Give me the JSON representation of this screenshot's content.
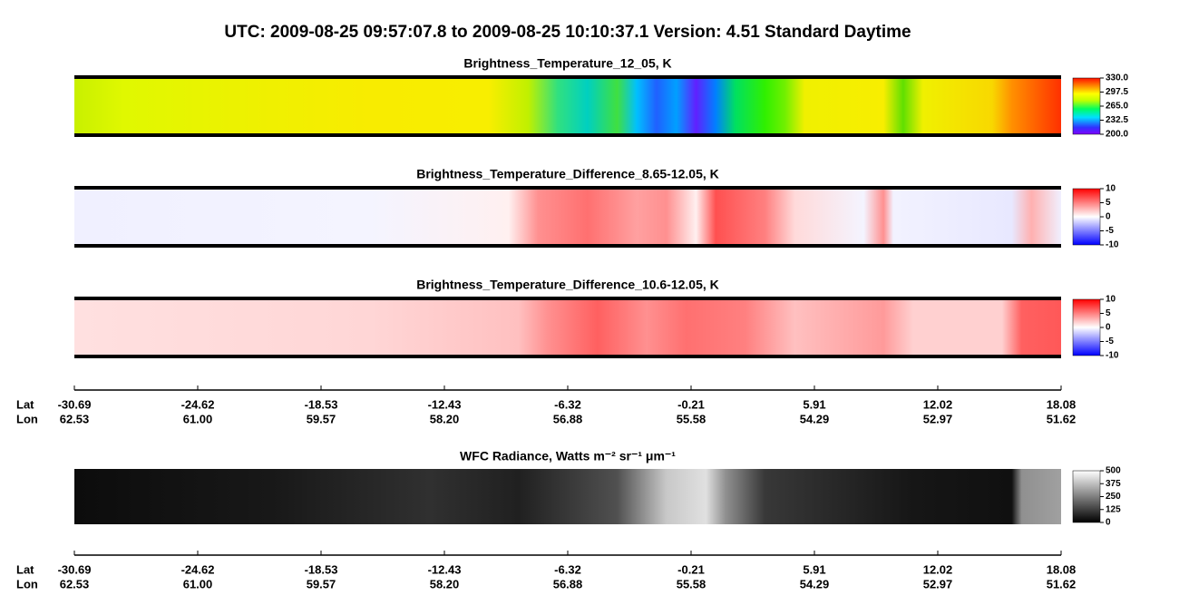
{
  "title": "UTC:  2009-08-25   09:57:07.8  to  2009-08-25   10:10:37.1    Version: 4.51  Standard Daytime",
  "chart_data": [
    {
      "type": "heatmap",
      "title": "Brightness_Temperature_12_05, K",
      "colorscale": "rainbow",
      "zlim": [
        200,
        330
      ],
      "zticks": [
        {
          "value": 330,
          "label": "330.0"
        },
        {
          "value": 297.5,
          "label": "297.5"
        },
        {
          "value": 265,
          "label": "265.0"
        },
        {
          "value": 232.5,
          "label": "232.5"
        },
        {
          "value": 200,
          "label": "200.0"
        }
      ]
    },
    {
      "type": "heatmap",
      "title": "Brightness_Temperature_Difference_8.65-12.05, K",
      "colorscale": "bluewhitered",
      "zlim": [
        -10,
        10
      ],
      "zticks": [
        10,
        5,
        0,
        -5,
        -10
      ]
    },
    {
      "type": "heatmap",
      "title": "Brightness_Temperature_Difference_10.6-12.05, K",
      "colorscale": "bluewhitered",
      "zlim": [
        -10,
        10
      ],
      "zticks": [
        10,
        5,
        0,
        -5,
        -10
      ]
    },
    {
      "type": "heatmap",
      "title": "WFC Radiance, Watts m⁻² sr⁻¹ μm⁻¹",
      "colorscale": "gray",
      "zlim": [
        0,
        500
      ],
      "zticks": [
        500,
        375,
        250,
        125,
        0
      ]
    }
  ],
  "along_track_axes": [
    {
      "lat_label": "Lat",
      "lon_label": "Lon",
      "lat": [
        "-30.69",
        "-24.62",
        "-18.53",
        "-12.43",
        "-6.32",
        "-0.21",
        "5.91",
        "12.02",
        "18.08"
      ],
      "lon": [
        "62.53",
        "61.00",
        "59.57",
        "58.20",
        "56.88",
        "55.58",
        "54.29",
        "52.97",
        "51.62"
      ]
    },
    {
      "lat_label": "Lat",
      "lon_label": "Lon",
      "lat": [
        "-30.69",
        "-24.62",
        "-18.53",
        "-12.43",
        "-6.32",
        "-0.21",
        "5.91",
        "12.02",
        "18.08"
      ],
      "lon": [
        "62.53",
        "61.00",
        "59.57",
        "58.20",
        "56.88",
        "55.58",
        "54.29",
        "52.97",
        "51.62"
      ]
    }
  ]
}
